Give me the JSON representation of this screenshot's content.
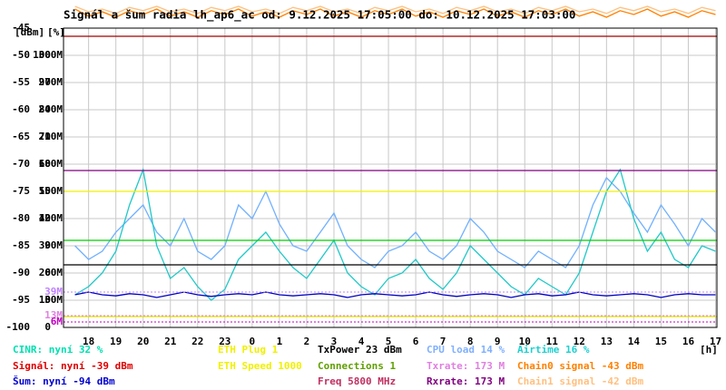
{
  "chart_data": {
    "type": "line",
    "title": "Signál a šum radia lh_ap6_ac od: 9.12.2025 17:05:00 do: 10.12.2025 17:03:00",
    "axis_headers": [
      "[dBm]",
      "[%]"
    ],
    "x_unit": "[h]",
    "xlim": [
      17.08,
      41.05
    ],
    "xticks": [
      18,
      19,
      20,
      21,
      22,
      23,
      {
        "value": 24,
        "label": "0"
      },
      {
        "value": 25,
        "label": "1"
      },
      {
        "value": 26,
        "label": "2"
      },
      {
        "value": 27,
        "label": "3"
      },
      {
        "value": 28,
        "label": "4"
      },
      {
        "value": 29,
        "label": "5"
      },
      {
        "value": 30,
        "label": "6"
      },
      {
        "value": 31,
        "label": "7"
      },
      {
        "value": 32,
        "label": "8"
      },
      {
        "value": 33,
        "label": "9"
      },
      {
        "value": 34,
        "label": "10"
      },
      {
        "value": 35,
        "label": "11"
      },
      {
        "value": 36,
        "label": "12"
      },
      {
        "value": 37,
        "label": "13"
      },
      {
        "value": 38,
        "label": "14"
      },
      {
        "value": 39,
        "label": "15"
      },
      {
        "value": 40,
        "label": "16"
      },
      {
        "value": 41,
        "label": "17"
      }
    ],
    "ylim": [
      -100,
      -45
    ],
    "yticks": [
      -45,
      -50,
      -55,
      -60,
      -65,
      -70,
      -75,
      -80,
      -85,
      -90,
      -95,
      -100
    ],
    "y2lim": [
      0,
      110
    ],
    "y2ticks": [
      100,
      90,
      80,
      70,
      60,
      50,
      40,
      30,
      20,
      10,
      0
    ],
    "y3lim": [
      0,
      330
    ],
    "y3ticks": [
      {
        "value": 300,
        "label": "300M"
      },
      {
        "value": 270,
        "label": "270M"
      },
      {
        "value": 240,
        "label": "240M"
      },
      {
        "value": 210,
        "label": "210M"
      },
      {
        "value": 180,
        "label": "180M"
      },
      {
        "value": 150,
        "label": "150M"
      },
      {
        "value": 120,
        "label": "120M"
      },
      {
        "value": 90,
        "label": "90M"
      },
      {
        "value": 60,
        "label": "60M"
      },
      {
        "value": 30,
        "label": "30M"
      }
    ],
    "grid": true,
    "x": [
      17.5,
      18,
      18.5,
      19,
      19.5,
      20,
      20.5,
      21,
      21.5,
      22,
      22.5,
      23,
      23.5,
      24,
      24.5,
      25,
      25.5,
      26,
      26.5,
      27,
      27.5,
      28,
      28.5,
      29,
      29.5,
      30,
      30.5,
      31,
      31.5,
      32,
      32.5,
      33,
      33.5,
      34,
      34.5,
      35,
      35.5,
      36,
      36.5,
      37,
      37.5,
      38,
      38.5,
      39,
      39.5,
      40,
      40.5,
      41
    ],
    "series": [
      {
        "color": "#70b0ff",
        "axis": "y2",
        "values": [
          30,
          25,
          28,
          35,
          40,
          45,
          35,
          30,
          40,
          28,
          25,
          30,
          45,
          40,
          50,
          38,
          30,
          28,
          35,
          42,
          30,
          25,
          22,
          28,
          30,
          35,
          28,
          25,
          30,
          40,
          35,
          28,
          25,
          22,
          28,
          25,
          22,
          30,
          45,
          55,
          50,
          42,
          35,
          45,
          38,
          30,
          40,
          35
        ]
      },
      {
        "color": "#20c8c8",
        "axis": "y2",
        "values": [
          12,
          15,
          20,
          28,
          45,
          58,
          30,
          18,
          22,
          15,
          10,
          14,
          25,
          30,
          35,
          28,
          22,
          18,
          25,
          32,
          20,
          15,
          12,
          18,
          20,
          25,
          18,
          14,
          20,
          30,
          25,
          20,
          15,
          12,
          18,
          15,
          12,
          20,
          35,
          50,
          58,
          40,
          28,
          35,
          25,
          22,
          30,
          28
        ]
      },
      {
        "color": "#0000c0",
        "axis": "y",
        "values": [
          -94,
          -93.5,
          -94,
          -94.2,
          -93.8,
          -94,
          -94.5,
          -94,
          -93.5,
          -94,
          -94.3,
          -94,
          -93.8,
          -94,
          -93.5,
          -94,
          -94.2,
          -94,
          -93.8,
          -94,
          -94.5,
          -94,
          -93.8,
          -94,
          -94.2,
          -94,
          -93.5,
          -94,
          -94.3,
          -94,
          -93.8,
          -94,
          -94.5,
          -94,
          -93.8,
          -94.2,
          -94,
          -93.5,
          -94,
          -94.2,
          -94,
          -93.8,
          -94,
          -94.5,
          -94,
          -93.8,
          -94,
          -94
        ]
      },
      {
        "color": "#ff8000",
        "axis": "y",
        "values": [
          -41.5,
          -42.8,
          -42,
          -43,
          -41.8,
          -42.5,
          -41.5,
          -42.8,
          -42,
          -43,
          -41.8,
          -42.5,
          -41.5,
          -42.8,
          -42,
          -43,
          -41.8,
          -42.5,
          -41.5,
          -42.8,
          -42,
          -43,
          -41.8,
          -42.5,
          -41.5,
          -42.8,
          -42,
          -43,
          -41.8,
          -42.5,
          -41.5,
          -42.8,
          -42,
          -43,
          -41.8,
          -42.5,
          -41.5,
          -42.8,
          -42,
          -43,
          -41.8,
          -42.5,
          -41.5,
          -42.8,
          -42,
          -43,
          -41.8,
          -42.5
        ]
      },
      {
        "color": "#ffc080",
        "axis": "y",
        "values": [
          -41,
          -42,
          -41.5,
          -42.3,
          -41.2,
          -41.8,
          -41,
          -42,
          -41.5,
          -42.3,
          -41.2,
          -41.8,
          -41,
          -42,
          -41.5,
          -42.3,
          -41.2,
          -41.8,
          -41,
          -42,
          -41.5,
          -42.3,
          -41.2,
          -41.8,
          -41,
          -42,
          -41.5,
          -42.3,
          -41.2,
          -41.8,
          -41,
          -42,
          -41.5,
          -42.3,
          -41.2,
          -41.8,
          -41,
          -42,
          -41.5,
          -42.3,
          -41.2,
          -41.8,
          -41,
          -42,
          -41.5,
          -42.3,
          -41.2,
          -41.8
        ]
      },
      {
        "color": "#a00000",
        "axis": "y",
        "x": [
          17.08,
          41.05
        ],
        "values": [
          -46.5,
          -46.5
        ]
      },
      {
        "color": "#800080",
        "axis": "y3",
        "x": [
          17.08,
          41.05
        ],
        "values": [
          173,
          173
        ]
      },
      {
        "color": "#f0f000",
        "axis": "y2",
        "x": [
          17.08,
          41.05
        ],
        "values": [
          50,
          50
        ]
      },
      {
        "color": "#000000",
        "axis": "y2",
        "x": [
          17.08,
          41.05
        ],
        "values": [
          23,
          23
        ]
      },
      {
        "color": "#00d000",
        "axis": "y2",
        "x": [
          17.08,
          41.05
        ],
        "values": [
          32,
          32
        ]
      },
      {
        "color": "#e0e000",
        "axis": "y2",
        "x": [
          17.08,
          41.05
        ],
        "values": [
          4,
          4
        ]
      }
    ],
    "markers": [
      {
        "value": 39,
        "label": "39M",
        "color": "#c080ff"
      },
      {
        "value": 13,
        "label": "13M",
        "color": "#e080e0"
      },
      {
        "value": 6,
        "label": "6M",
        "color": "#c000c0"
      }
    ],
    "legend": [
      [
        {
          "text": "CINR: nyní 32 %",
          "color": "#00e0b0"
        },
        {
          "text": "Signál: nyní -39 dBm",
          "color": "#e00000"
        },
        {
          "text": "Šum: nyní -94 dBm",
          "color": "#0000d0"
        }
      ],
      [
        {
          "text": "ETH Plug 1",
          "color": "#f0f000"
        },
        {
          "text": "ETH Speed 1000",
          "color": "#f0f000"
        }
      ],
      [
        {
          "text": "TxPower 23 dBm",
          "color": "#000000"
        },
        {
          "text": "Connections 1",
          "color": "#60a000"
        },
        {
          "text": "Freq 5800 MHz",
          "color": "#c03060"
        }
      ],
      [
        {
          "text": "CPU load 14 %",
          "color": "#80b0ff"
        },
        {
          "text": "Txrate: 173 M",
          "color": "#e080e0"
        },
        {
          "text": "Rxrate: 173 M",
          "color": "#800080"
        }
      ],
      [
        {
          "text": "Airtime 16 %",
          "color": "#20d0d0"
        },
        {
          "text": "Chain0 signal -43 dBm",
          "color": "#ff8000"
        },
        {
          "text": "Chain1 signal -42 dBm",
          "color": "#ffc080"
        }
      ]
    ]
  }
}
